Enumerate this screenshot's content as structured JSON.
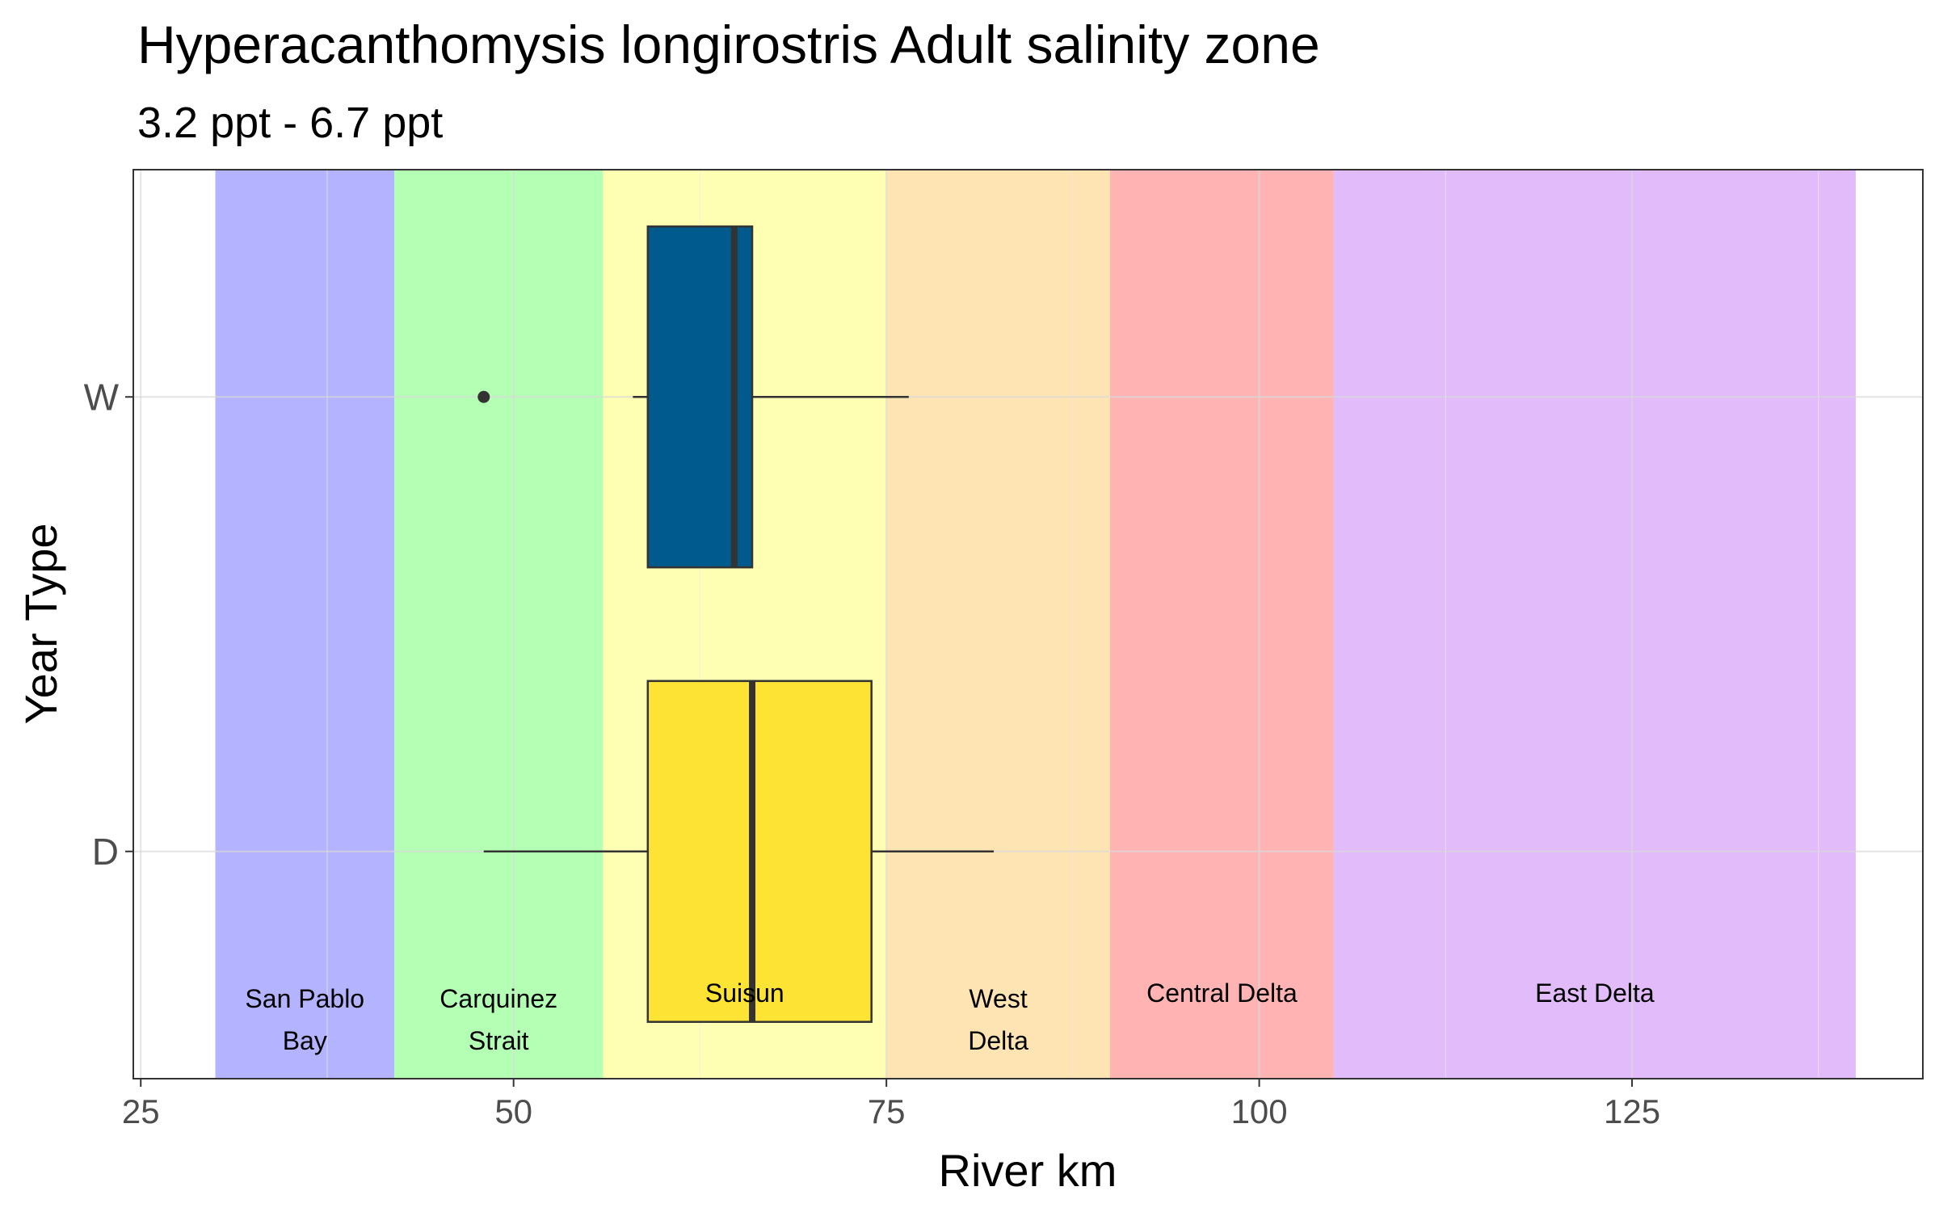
{
  "chart_data": {
    "type": "boxplot",
    "orientation": "horizontal",
    "title": "Hyperacanthomysis longirostris Adult  salinity zone",
    "subtitle": "3.2 ppt - 6.7 ppt",
    "xlabel": "River km",
    "ylabel": "Year Type",
    "xlim": [
      24.5,
      144.5
    ],
    "x_ticks": [
      25,
      50,
      75,
      100,
      125
    ],
    "categories": [
      "D",
      "W"
    ],
    "grid": true,
    "zones": [
      {
        "label_lines": [
          "San Pablo",
          "Bay"
        ],
        "start": 30,
        "end": 42,
        "color": "#b3b3ff"
      },
      {
        "label_lines": [
          "Carquinez",
          "Strait"
        ],
        "start": 42,
        "end": 56,
        "color": "#b3ffb3"
      },
      {
        "label_lines": [
          "Suisun"
        ],
        "start": 56,
        "end": 75,
        "color": "#ffffb3"
      },
      {
        "label_lines": [
          "West",
          "Delta"
        ],
        "start": 75,
        "end": 90,
        "color": "#fee3b3"
      },
      {
        "label_lines": [
          "Central Delta"
        ],
        "start": 90,
        "end": 105,
        "color": "#ffb3b3"
      },
      {
        "label_lines": [
          "East Delta"
        ],
        "start": 105,
        "end": 140,
        "color": "#e2bcfa"
      }
    ],
    "boxes": [
      {
        "category": "W",
        "whisker_low": 58,
        "q1": 59,
        "median": 64.8,
        "q3": 66,
        "whisker_high": 76.5,
        "outliers": [
          48
        ],
        "color": "#005a8c"
      },
      {
        "category": "D",
        "whisker_low": 48,
        "q1": 59,
        "median": 66,
        "q3": 74,
        "whisker_high": 82.2,
        "outliers": [],
        "color": "#fde333"
      }
    ]
  }
}
